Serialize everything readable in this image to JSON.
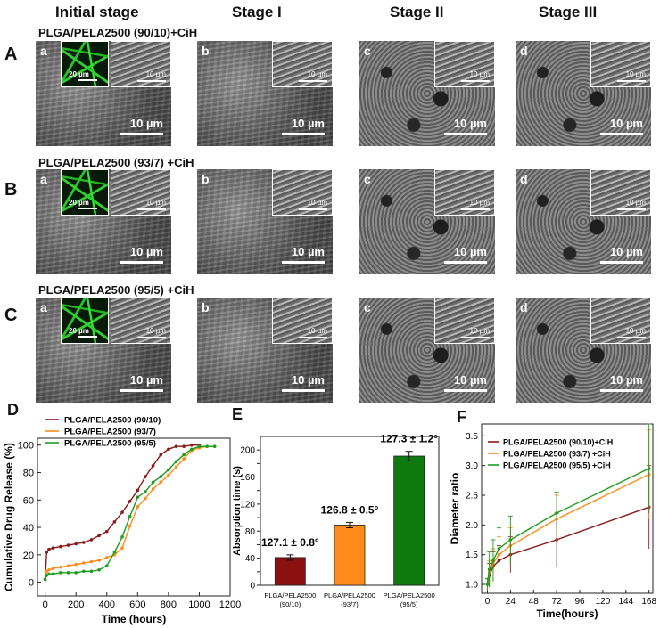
{
  "column_headers": [
    "Initial stage",
    "Stage I",
    "Stage II",
    "Stage III"
  ],
  "rows": [
    {
      "letter": "A",
      "title": "PLGA/PELA2500 (90/10)+CiH"
    },
    {
      "letter": "B",
      "title": "PLGA/PELA2500 (93/7) +CiH"
    },
    {
      "letter": "C",
      "title": "PLGA/PELA2500 (95/5) +CiH"
    }
  ],
  "panel_letters": [
    "a",
    "b",
    "c",
    "d"
  ],
  "scale_main": "10 µm",
  "scale_inset": "10 µm",
  "scale_fluor": "20 µm",
  "panel_labels": {
    "D": "D",
    "E": "E",
    "F": "F"
  },
  "colors": {
    "dark_red": "#8B1A1A",
    "orange": "#FF8C1A",
    "green": "#1E9E1E",
    "bar_green": "#0E7A0E"
  },
  "chart_data": [
    {
      "id": "D",
      "type": "line",
      "xlabel": "Time (hours)",
      "ylabel": "Cumulative Drug Release (%)",
      "xlim": [
        -50,
        1200
      ],
      "ylim": [
        -10,
        105
      ],
      "xticks": [
        0,
        200,
        400,
        600,
        800,
        1000,
        1200
      ],
      "yticks": [
        0,
        20,
        40,
        60,
        80,
        100
      ],
      "series": [
        {
          "name": "PLGA/PELA2500 (90/10)",
          "color": "#8B1A1A",
          "x": [
            0,
            10,
            25,
            50,
            100,
            150,
            200,
            250,
            300,
            350,
            400,
            450,
            500,
            550,
            600,
            650,
            700,
            750,
            800,
            850,
            900,
            950,
            1000
          ],
          "y": [
            2,
            22,
            24,
            25,
            26,
            27,
            28,
            29,
            31,
            34,
            37,
            44,
            51,
            59,
            67,
            77,
            85,
            93,
            97,
            99,
            99,
            100,
            100
          ]
        },
        {
          "name": "PLGA/PELA2500 (93/7)",
          "color": "#FF8C1A",
          "x": [
            0,
            10,
            25,
            50,
            100,
            150,
            200,
            250,
            300,
            350,
            400,
            450,
            500,
            550,
            600,
            650,
            700,
            750,
            800,
            850,
            900,
            950,
            1000,
            1050,
            1100
          ],
          "y": [
            2,
            8,
            9,
            10,
            11,
            12,
            13,
            14,
            15,
            16,
            18,
            20,
            25,
            41,
            55,
            61,
            68,
            73,
            78,
            84,
            90,
            96,
            98,
            99,
            99
          ]
        },
        {
          "name": "PLGA/PELA2500 (95/5)",
          "color": "#1E9E1E",
          "x": [
            0,
            10,
            25,
            50,
            100,
            150,
            200,
            250,
            300,
            350,
            400,
            450,
            500,
            550,
            600,
            650,
            700,
            750,
            800,
            850,
            900,
            950,
            1000,
            1050,
            1100
          ],
          "y": [
            2,
            5,
            6,
            6,
            7,
            7,
            7,
            8,
            8,
            9,
            12,
            22,
            33,
            48,
            62,
            66,
            73,
            77,
            82,
            88,
            93,
            97,
            99,
            99,
            99
          ]
        }
      ]
    },
    {
      "id": "E",
      "type": "bar",
      "ylabel": "Absorption time (s)",
      "ylim": [
        0,
        220
      ],
      "yticks": [
        0,
        20,
        40,
        60,
        80,
        100,
        120,
        140,
        160,
        180,
        200
      ],
      "categories": [
        [
          "PLGA/PELA2500",
          "(90/10)"
        ],
        [
          "PLGA/PELA2500",
          "(93/7)"
        ],
        [
          "PLGA/PELA2500",
          "(95/5)"
        ]
      ],
      "values": [
        41,
        89,
        191
      ],
      "errors": [
        4,
        4,
        7
      ],
      "bar_colors": [
        "#8B1010",
        "#FF8C1A",
        "#0E7A0E"
      ],
      "bar_labels": [
        "127.1 ± 0.8°",
        "126.8 ± 0.5°",
        "127.3 ± 1.2°"
      ]
    },
    {
      "id": "F",
      "type": "line",
      "xlabel": "Time(hours)",
      "ylabel": "Diameter ratio",
      "xlim": [
        -6,
        172
      ],
      "ylim": [
        0.85,
        3.7
      ],
      "xticks": [
        0,
        24,
        48,
        72,
        96,
        120,
        144,
        168
      ],
      "yticks": [
        1.0,
        1.5,
        2.0,
        2.5,
        3.0,
        3.5
      ],
      "series": [
        {
          "name": "PLGA/PELA2500 (90/10)+CiH",
          "color": "#8B1A1A",
          "x": [
            0,
            2,
            6,
            12,
            24,
            72,
            168
          ],
          "y": [
            1.0,
            1.15,
            1.3,
            1.4,
            1.5,
            1.75,
            2.3
          ],
          "err": [
            0.1,
            0.2,
            0.25,
            0.25,
            0.3,
            0.45,
            0.7
          ]
        },
        {
          "name": "PLGA/PELA2500 (93/7) +CiH",
          "color": "#FF8C1A",
          "x": [
            0,
            2,
            6,
            12,
            24,
            72,
            168
          ],
          "y": [
            1.0,
            1.2,
            1.35,
            1.5,
            1.65,
            2.1,
            2.85
          ],
          "err": [
            0.1,
            0.2,
            0.25,
            0.3,
            0.3,
            0.4,
            0.75
          ]
        },
        {
          "name": "PLGA/PELA2500 (95/5) +CiH",
          "color": "#1E9E1E",
          "x": [
            0,
            2,
            6,
            12,
            24,
            72,
            168
          ],
          "y": [
            1.0,
            1.25,
            1.4,
            1.6,
            1.75,
            2.2,
            2.95
          ],
          "err": [
            0.1,
            0.3,
            0.35,
            0.35,
            0.4,
            0.35,
            0.75
          ]
        }
      ]
    }
  ]
}
